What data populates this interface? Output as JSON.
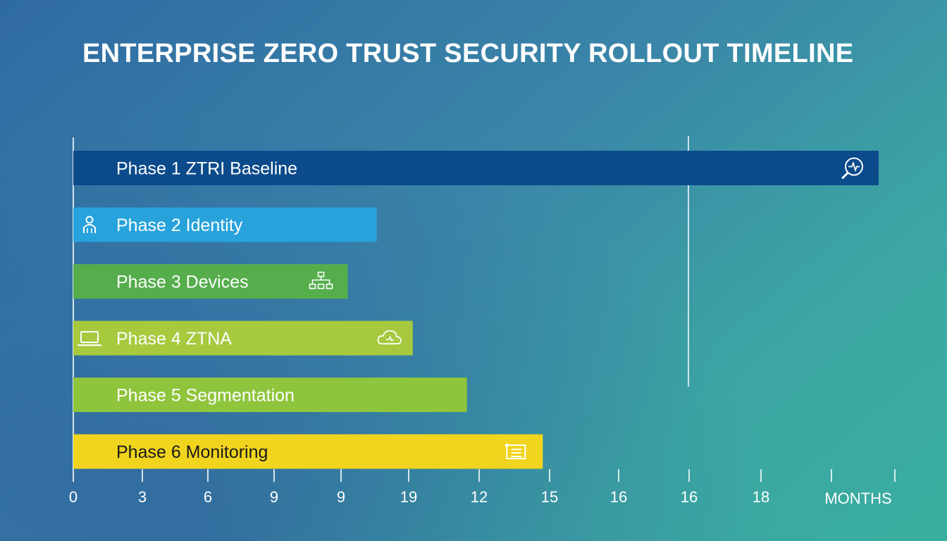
{
  "title": "ENTERPRISE ZERO TRUST SECURITY ROLLOUT TIMELINE",
  "chart_data": {
    "type": "bar",
    "orientation": "horizontal",
    "title": "ENTERPRISE ZERO TRUST SECURITY ROLLOUT TIMELINE",
    "xlabel": "MONTHS",
    "ylabel": "",
    "x_tick_labels": [
      "0",
      "3",
      "6",
      "9",
      "9",
      "19",
      "12",
      "15",
      "16",
      "16",
      "18"
    ],
    "xlim": [
      0,
      22.3
    ],
    "grid": false,
    "legend": "none",
    "reference_line": {
      "x": 17,
      "top": true
    },
    "categories": [
      "Phase 1 ZTRI Baseline",
      "Phase 2 Identity",
      "Phase 3 Devices",
      "Phase 4 ZTNA",
      "Phase 5 Segmentation",
      "Phase 6 Monitoring"
    ],
    "values": [
      22.3,
      8.4,
      7.6,
      9.4,
      10.9,
      13.0
    ],
    "bars": [
      {
        "label": "Phase 1 ZTRI Baseline",
        "value": 22.3,
        "color": "#0b4a8b",
        "text_color": "#ffffff",
        "icon": "search-monitor-icon",
        "icon_side": "end"
      },
      {
        "label": "Phase 2 Identity",
        "value": 8.4,
        "color": "#27a2da",
        "text_color": "#ffffff",
        "icon": "person-icon",
        "icon_side": "start"
      },
      {
        "label": "Phase 3 Devices",
        "value": 7.6,
        "color": "#55ad4c",
        "text_color": "#ffffff",
        "icon": "network-icon",
        "icon_side": "end"
      },
      {
        "label": "Phase 4 ZTNA",
        "value": 9.4,
        "color": "#a6c93d",
        "text_color": "#ffffff",
        "icon": "laptop-icon",
        "icon_side": "start",
        "icon2": "cloud-icon"
      },
      {
        "label": "Phase 5 Segmentation",
        "value": 10.9,
        "color": "#8fc43d",
        "text_color": "#ffffff"
      },
      {
        "label": "Phase 6 Monitoring",
        "value": 13.0,
        "color": "#f1d41e",
        "text_color": "#1a1a1a",
        "icon": "list-icon",
        "icon_side": "end"
      }
    ]
  }
}
